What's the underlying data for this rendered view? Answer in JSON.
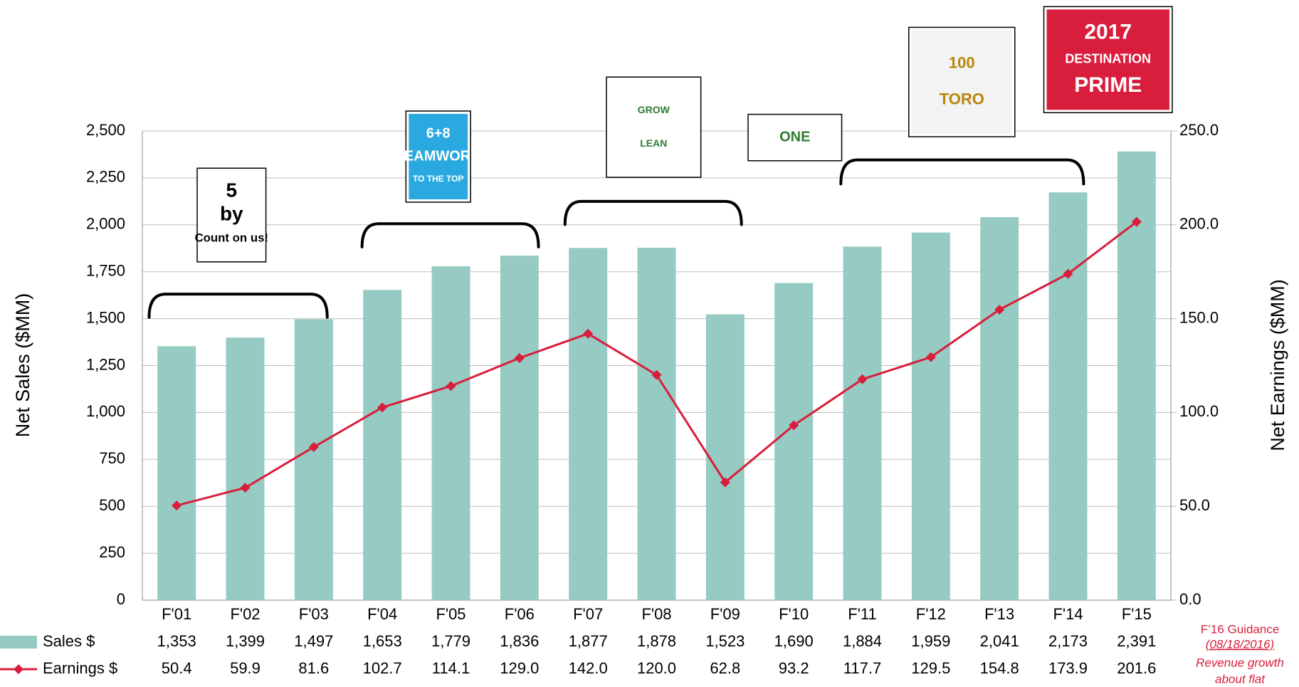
{
  "chart_data": {
    "type": "bar_line",
    "categories": [
      "F'01",
      "F'02",
      "F'03",
      "F'04",
      "F'05",
      "F'06",
      "F'07",
      "F'08",
      "F'09",
      "F'10",
      "F'11",
      "F'12",
      "F'13",
      "F'14",
      "F'15"
    ],
    "series": [
      {
        "name": "Sales $",
        "type": "bar",
        "color": "#96cbc3",
        "values": [
          1353,
          1399,
          1497,
          1653,
          1779,
          1836,
          1877,
          1878,
          1523,
          1690,
          1884,
          1959,
          2041,
          2173,
          2391
        ],
        "value_labels": [
          "1,353",
          "1,399",
          "1,497",
          "1,653",
          "1,779",
          "1,836",
          "1,877",
          "1,878",
          "1,523",
          "1,690",
          "1,884",
          "1,959",
          "2,041",
          "2,173",
          "2,391"
        ]
      },
      {
        "name": "Earnings $",
        "type": "line",
        "axis": "y2",
        "color": "#d81e3c",
        "values": [
          50.4,
          59.9,
          81.6,
          102.7,
          114.1,
          129.0,
          142.0,
          120.0,
          62.8,
          93.2,
          117.7,
          129.5,
          154.8,
          173.9,
          201.6
        ],
        "value_labels": [
          "50.4",
          "59.9",
          "81.6",
          "102.7",
          "114.1",
          "129.0",
          "142.0",
          "120.0",
          "62.8",
          "93.2",
          "117.7",
          "129.5",
          "154.8",
          "173.9",
          "201.6"
        ]
      }
    ],
    "ylabel": "Net Sales ($MM)",
    "y2label": "Net Earnings ($MM)",
    "ylim": [
      0,
      2500
    ],
    "yticks": [
      0,
      250,
      500,
      750,
      {
        "value": 1000,
        "label": "1,000"
      },
      {
        "value": 1250,
        "label": "1,250"
      },
      {
        "value": 1500,
        "label": "1,500"
      },
      {
        "value": 1750,
        "label": "1,750"
      },
      {
        "value": 2000,
        "label": "2,000"
      },
      {
        "value": 2250,
        "label": "2,250"
      },
      {
        "value": 2500,
        "label": "2,500"
      }
    ],
    "y2lim": [
      0,
      250
    ],
    "y2ticks": [
      {
        "value": 0,
        "label": "0.0"
      },
      {
        "value": 50,
        "label": "50.0"
      },
      {
        "value": 100,
        "label": "100.0"
      },
      {
        "value": 150,
        "label": "150.0"
      },
      {
        "value": 200,
        "label": "200.0"
      },
      {
        "value": 250,
        "label": "250.0"
      }
    ],
    "grid": true,
    "annotations": [
      "F’16 Guidance",
      "(08/18/2016)",
      "Revenue growth",
      "about  flat"
    ],
    "logos": [
      [
        "5",
        "by",
        "Count on us!"
      ],
      [
        "6+8",
        "TEAMWORK",
        "TO THE TOP"
      ],
      [
        "GROW",
        "LEAN"
      ],
      [
        "ONE"
      ],
      [
        "100",
        "TORO"
      ],
      [
        "2017",
        "DESTINATION",
        "PRIME"
      ]
    ]
  }
}
